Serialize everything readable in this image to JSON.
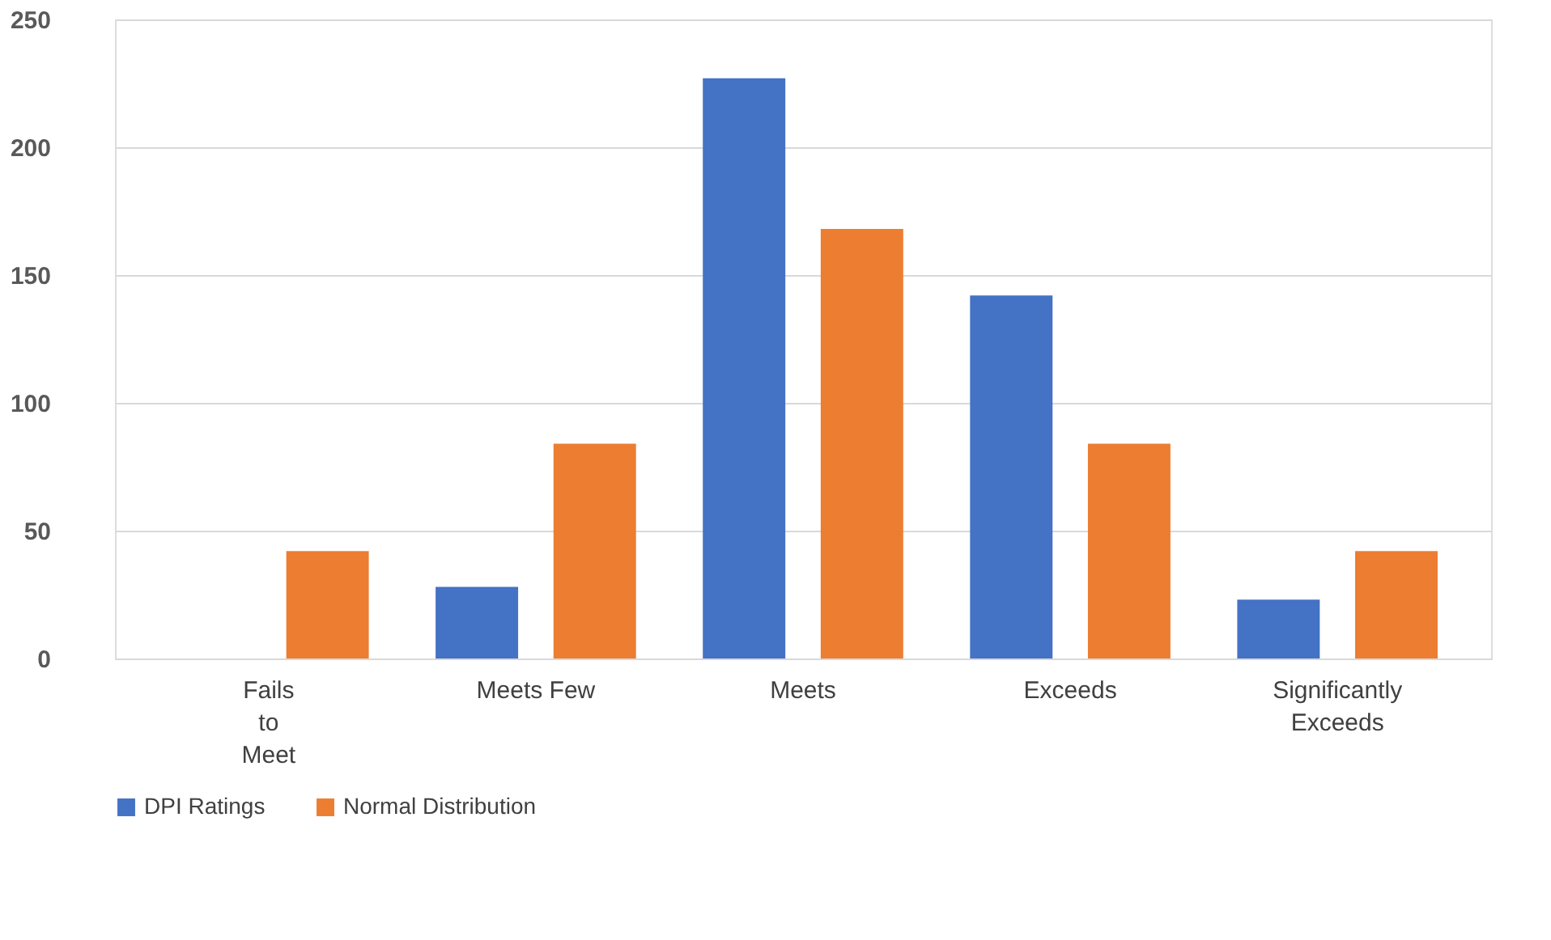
{
  "chart_data": {
    "type": "bar",
    "categories": [
      "Fails to Meet",
      "Meets Few",
      "Meets",
      "Exceeds",
      "Significantly Exceeds"
    ],
    "series": [
      {
        "name": "DPI Ratings",
        "color": "#4472c4",
        "values": [
          0,
          28,
          227,
          142,
          23
        ]
      },
      {
        "name": "Normal Distribution",
        "color": "#ed7d31",
        "values": [
          42,
          84,
          168,
          84,
          42
        ]
      }
    ],
    "ylim": [
      0,
      250
    ],
    "yticks": [
      0,
      50,
      100,
      150,
      200,
      250
    ],
    "grid": "y",
    "legend": "bottom"
  }
}
